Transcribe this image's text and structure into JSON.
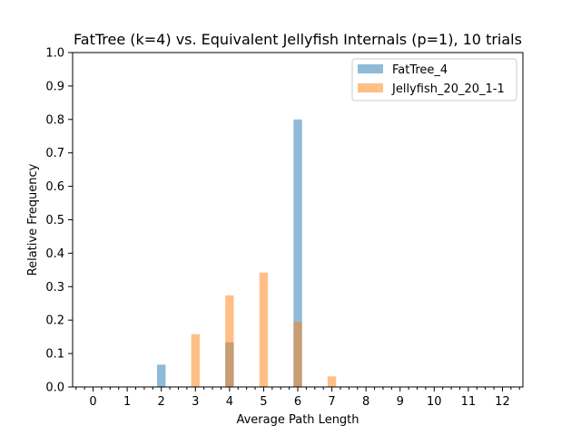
{
  "chart_data": {
    "type": "bar",
    "title": "FatTree (k=4) vs. Equivalent Jellyfish Internals (p=1), 10 trials",
    "xlabel": "Average Path Length",
    "ylabel": "Relative Frequency",
    "xlim": [
      -0.6,
      12.6
    ],
    "ylim": [
      0,
      1.0
    ],
    "xticks": [
      "0",
      "1",
      "2",
      "3",
      "4",
      "5",
      "6",
      "7",
      "8",
      "9",
      "10",
      "11",
      "12"
    ],
    "yticks": [
      "0.0",
      "0.1",
      "0.2",
      "0.3",
      "0.4",
      "0.5",
      "0.6",
      "0.7",
      "0.8",
      "0.9",
      "1.0"
    ],
    "minor_xtick_step": 0.25,
    "bar_width": 0.25,
    "legend_position": "top-right",
    "series": [
      {
        "name": "FatTree_4",
        "color": "#1f77b4",
        "alpha": 0.5,
        "points": [
          {
            "x": 2,
            "y": 0.0667
          },
          {
            "x": 4,
            "y": 0.1333
          },
          {
            "x": 6,
            "y": 0.8
          }
        ]
      },
      {
        "name": "Jellyfish_20_20_1-1",
        "color": "#ff7f0e",
        "alpha": 0.5,
        "points": [
          {
            "x": 3,
            "y": 0.1579
          },
          {
            "x": 4,
            "y": 0.2737
          },
          {
            "x": 5,
            "y": 0.3421
          },
          {
            "x": 6,
            "y": 0.1947
          },
          {
            "x": 7,
            "y": 0.0316
          }
        ]
      }
    ]
  }
}
